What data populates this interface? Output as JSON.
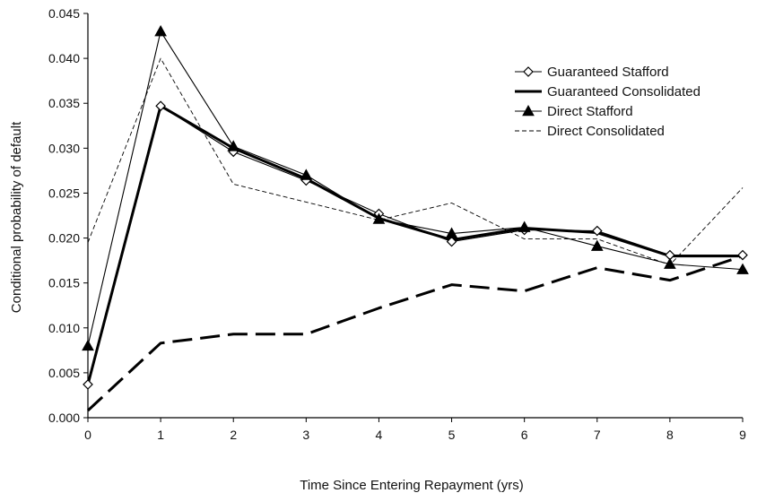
{
  "chart_data": {
    "type": "line",
    "title": "",
    "xlabel": "Time Since Entering Repayment (yrs)",
    "ylabel": "Conditional probability of default",
    "x": [
      0,
      1,
      2,
      3,
      4,
      5,
      6,
      7,
      8,
      9
    ],
    "xlim": [
      0,
      9
    ],
    "ylim": [
      0,
      0.045
    ],
    "x_ticks": [
      "0",
      "1",
      "2",
      "3",
      "4",
      "5",
      "6",
      "7",
      "8",
      "9"
    ],
    "y_ticks": [
      "0.000",
      "0.005",
      "0.010",
      "0.015",
      "0.020",
      "0.025",
      "0.030",
      "0.035",
      "0.040",
      "0.045"
    ],
    "grid": false,
    "legend_position": "top-right",
    "series": [
      {
        "name": "Guaranteed Stafford",
        "style": "thin-solid-diamond",
        "color": "#000000",
        "values": [
          0.0037,
          0.0347,
          0.0296,
          0.0264,
          0.0227,
          0.0196,
          0.0209,
          0.0208,
          0.0181,
          0.0181
        ]
      },
      {
        "name": "Guaranteed Consolidated",
        "style": "thick-solid",
        "color": "#000000",
        "values": [
          0.0037,
          0.0347,
          0.03,
          0.0266,
          0.0222,
          0.0198,
          0.0211,
          0.0206,
          0.018,
          0.018
        ]
      },
      {
        "name": "Direct Stafford",
        "style": "thin-solid-triangle",
        "color": "#000000",
        "values": [
          0.008,
          0.043,
          0.0302,
          0.027,
          0.0221,
          0.0205,
          0.0212,
          0.0191,
          0.0171,
          0.0165
        ]
      },
      {
        "name": "Direct Consolidated",
        "style": "thin-dashed",
        "color": "#000000",
        "values": [
          0.0195,
          0.04,
          0.026,
          0.024,
          0.022,
          0.0239,
          0.0199,
          0.0199,
          0.017,
          0.0256
        ]
      },
      {
        "name": "",
        "style": "thick-dashed",
        "color": "#000000",
        "values": [
          0.0008,
          0.0083,
          0.0093,
          0.0093,
          0.0122,
          0.0148,
          0.0141,
          0.0167,
          0.0153,
          0.018
        ]
      }
    ]
  }
}
